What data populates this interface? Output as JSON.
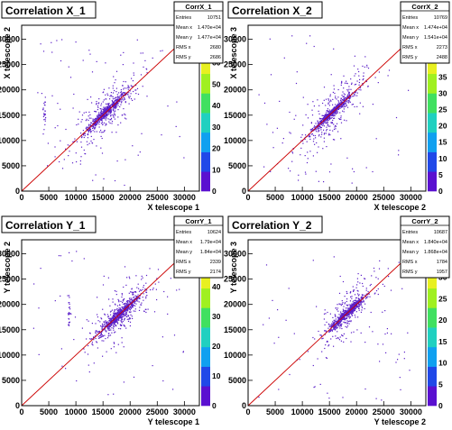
{
  "chart_data": [
    {
      "type": "scatter",
      "title": "Correlation X_1",
      "xlabel": "X telescope 1",
      "ylabel": "X telescope 2",
      "xlim": [
        0,
        32768
      ],
      "ylim": [
        0,
        32768
      ],
      "x_ticks": [
        "0",
        "5000",
        "10000",
        "15000",
        "20000",
        "25000",
        "30000"
      ],
      "y_ticks": [
        "0",
        "5000",
        "10000",
        "15000",
        "20000",
        "25000",
        "30000"
      ],
      "z_ticks": [
        "0",
        "10",
        "20",
        "30",
        "40",
        "50",
        "60"
      ],
      "zlim": [
        0,
        64
      ],
      "stats": {
        "name": "CorrX_1",
        "rows": [
          {
            "label": "Entries",
            "value": "10751"
          },
          {
            "label": "Mean x",
            "value": "1.470e+04"
          },
          {
            "label": "Mean y",
            "value": "1.477e+04"
          },
          {
            "label": "RMS x",
            "value": "2680"
          },
          {
            "label": "RMS y",
            "value": "2686"
          }
        ]
      },
      "density_core": {
        "x_center": 15500,
        "x_spread": 2000,
        "y_offset_spread": 500
      },
      "diagonal": true
    },
    {
      "type": "scatter",
      "title": "Correlation X_2",
      "xlabel": "X telescope 2",
      "ylabel": "X telescope 3",
      "xlim": [
        0,
        32768
      ],
      "ylim": [
        0,
        32768
      ],
      "x_ticks": [
        "0",
        "5000",
        "10000",
        "15000",
        "20000",
        "25000",
        "30000"
      ],
      "y_ticks": [
        "0",
        "5000",
        "10000",
        "15000",
        "20000",
        "25000",
        "30000"
      ],
      "z_ticks": [
        "0",
        "5",
        "10",
        "15",
        "20",
        "25",
        "30",
        "35",
        "40"
      ],
      "zlim": [
        0,
        42
      ],
      "stats": {
        "name": "CorrX_2",
        "rows": [
          {
            "label": "Entries",
            "value": "10769"
          },
          {
            "label": "Mean x",
            "value": "1.474e+04"
          },
          {
            "label": "Mean y",
            "value": "1.541e+04"
          },
          {
            "label": "RMS x",
            "value": "2273"
          },
          {
            "label": "RMS y",
            "value": "2488"
          }
        ]
      },
      "density_core": {
        "x_center": 15500,
        "x_spread": 1900,
        "y_offset_spread": 400
      },
      "diagonal": true
    },
    {
      "type": "scatter",
      "title": "Correlation Y_1",
      "xlabel": "Y telescope 1",
      "ylabel": "Y telescope 2",
      "xlim": [
        0,
        32768
      ],
      "ylim": [
        0,
        32768
      ],
      "x_ticks": [
        "0",
        "5000",
        "10000",
        "15000",
        "20000",
        "25000",
        "30000"
      ],
      "y_ticks": [
        "0",
        "5000",
        "10000",
        "15000",
        "20000",
        "25000",
        "30000"
      ],
      "z_ticks": [
        "0",
        "10",
        "20",
        "30",
        "40"
      ],
      "zlim": [
        0,
        46
      ],
      "stats": {
        "name": "CorrY_1",
        "rows": [
          {
            "label": "Entries",
            "value": "10624"
          },
          {
            "label": "Mean x",
            "value": "1.79e+04"
          },
          {
            "label": "Mean y",
            "value": "1.84e+04"
          },
          {
            "label": "RMS x",
            "value": "2339"
          },
          {
            "label": "RMS y",
            "value": "2174"
          }
        ]
      },
      "density_core": {
        "x_center": 18000,
        "x_spread": 1800,
        "y_offset_spread": 600
      },
      "diagonal": true
    },
    {
      "type": "scatter",
      "title": "Correlation Y_2",
      "xlabel": "Y telescope 2",
      "ylabel": "Y telescope 3",
      "xlim": [
        0,
        32768
      ],
      "ylim": [
        0,
        32768
      ],
      "x_ticks": [
        "0",
        "5000",
        "10000",
        "15000",
        "20000",
        "25000",
        "30000"
      ],
      "y_ticks": [
        "0",
        "5000",
        "10000",
        "15000",
        "20000",
        "25000",
        "30000"
      ],
      "z_ticks": [
        "0",
        "5",
        "10",
        "15",
        "20",
        "25",
        "30"
      ],
      "zlim": [
        0,
        32
      ],
      "stats": {
        "name": "CorrY_2",
        "rows": [
          {
            "label": "Entries",
            "value": "10687"
          },
          {
            "label": "Mean x",
            "value": "1.840e+04"
          },
          {
            "label": "Mean y",
            "value": "1.868e+04"
          },
          {
            "label": "RMS x",
            "value": "1784"
          },
          {
            "label": "RMS y",
            "value": "1957"
          }
        ]
      },
      "density_core": {
        "x_center": 18200,
        "x_spread": 1600,
        "y_offset_spread": 450
      },
      "diagonal": true
    }
  ],
  "colors": {
    "points": "#5a1ec8",
    "diagonal": "#cc0000",
    "frame": "#000000",
    "palette": [
      "#5a10d0",
      "#2048e8",
      "#10a0f0",
      "#20d0c0",
      "#40e060",
      "#a0f020",
      "#e8f020"
    ]
  }
}
